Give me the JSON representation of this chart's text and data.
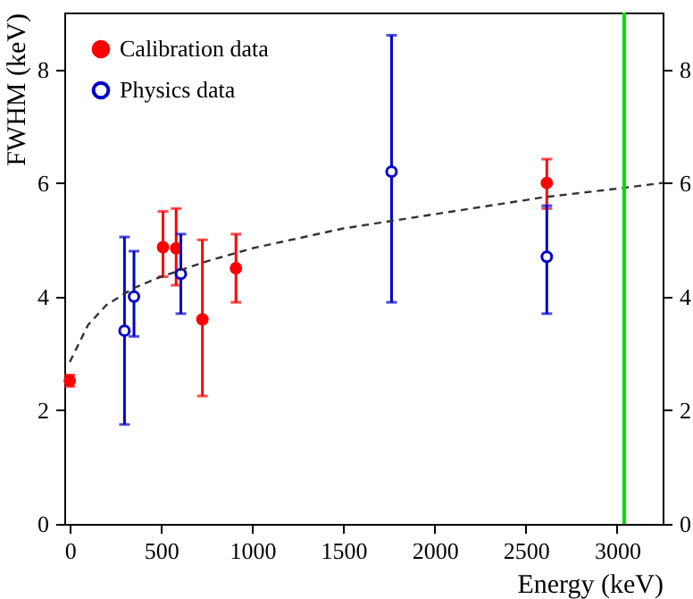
{
  "chart_data": {
    "type": "scatter",
    "xlabel": "Energy (keV)",
    "ylabel": "FWHM (keV)",
    "xlim": [
      -30,
      3250
    ],
    "xticks": [
      0,
      500,
      1000,
      1500,
      2000,
      2500,
      3000
    ],
    "ylim": [
      0,
      9
    ],
    "yticks": [
      0,
      2,
      4,
      6,
      8
    ],
    "y2lim": [
      0,
      9
    ],
    "y2ticks": [
      0,
      2,
      4,
      6,
      8
    ],
    "marker": "circle",
    "legend": "top left",
    "grid": false,
    "series": [
      {
        "name": "Calibration data",
        "color": "#ff0000",
        "x": [
          0,
          511,
          583,
          727,
          911,
          2615
        ],
        "values": [
          2.52,
          4.87,
          4.85,
          3.6,
          4.5,
          6.0
        ],
        "errors": [
          [
            2.42,
            2.62
          ],
          [
            4.35,
            5.5
          ],
          [
            4.2,
            5.55
          ],
          [
            2.25,
            5.0
          ],
          [
            3.9,
            5.1
          ],
          [
            5.55,
            6.42
          ]
        ]
      },
      {
        "name": "Physics data",
        "color": "#0000cc",
        "x": [
          300,
          352,
          609,
          1764,
          2615
        ],
        "values": [
          3.4,
          4.0,
          4.4,
          6.2,
          4.7
        ],
        "errors": [
          [
            1.75,
            5.05
          ],
          [
            3.3,
            4.8
          ],
          [
            3.7,
            5.1
          ],
          [
            3.9,
            8.6
          ],
          [
            3.7,
            5.6
          ]
        ]
      },
      {
        "type": "line",
        "color": "#333333",
        "line_style": "dashed",
        "marker": "none",
        "x": [
          0,
          100,
          200,
          350,
          500,
          750,
          1000,
          1500,
          2000,
          2600,
          3000,
          3250
        ],
        "values": [
          2.85,
          3.5,
          3.85,
          4.15,
          4.35,
          4.62,
          4.85,
          5.2,
          5.45,
          5.75,
          5.9,
          6.0
        ]
      }
    ],
    "ref_lines": [
      {
        "axis": "x",
        "value": 3039,
        "color": "#00dd00"
      }
    ]
  }
}
